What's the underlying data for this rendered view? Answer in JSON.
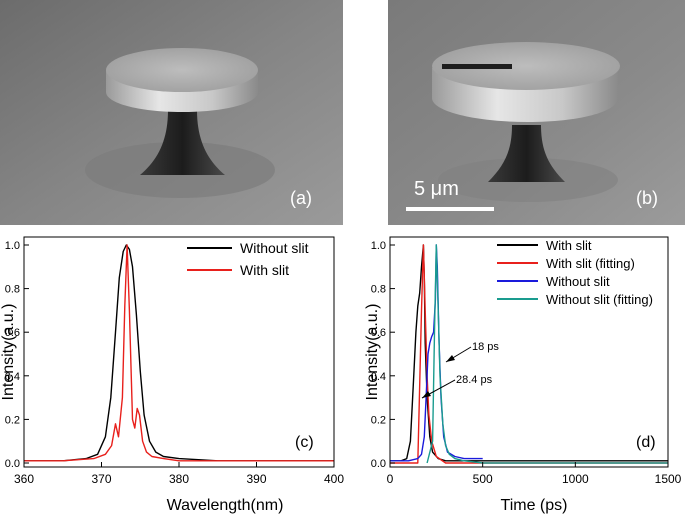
{
  "panels": {
    "a": {
      "label": "(a)"
    },
    "b": {
      "label": "(b)",
      "scale_bar": "5 μm"
    }
  },
  "chart_data": [
    {
      "id": "c",
      "type": "line",
      "panel_label": "(c)",
      "xlabel": "Wavelength(nm)",
      "ylabel": "Intensity(a.u.)",
      "xlim": [
        360,
        400
      ],
      "ylim": [
        0,
        1.0
      ],
      "xticks": [
        360,
        370,
        380,
        390,
        400
      ],
      "yticks": [
        0.0,
        0.2,
        0.4,
        0.6,
        0.8,
        1.0
      ],
      "legend_position": "top-right",
      "series": [
        {
          "name": "Without slit",
          "color": "#000000",
          "x": [
            360,
            365,
            368,
            369.5,
            370.5,
            371.2,
            371.8,
            372.3,
            372.8,
            373.2,
            373.6,
            374.0,
            374.5,
            375.0,
            375.5,
            376.2,
            377.0,
            378.0,
            380,
            385,
            390,
            395,
            400
          ],
          "y": [
            0.01,
            0.01,
            0.02,
            0.04,
            0.12,
            0.3,
            0.6,
            0.85,
            0.97,
            1.0,
            0.98,
            0.9,
            0.68,
            0.42,
            0.22,
            0.1,
            0.05,
            0.03,
            0.02,
            0.01,
            0.01,
            0.01,
            0.01
          ]
        },
        {
          "name": "With slit",
          "color": "#e8201c",
          "x": [
            360,
            365,
            369,
            370.5,
            371.3,
            371.8,
            372.2,
            372.7,
            373.0,
            373.3,
            373.6,
            374.0,
            374.3,
            374.6,
            374.9,
            375.3,
            375.8,
            376.5,
            378,
            380,
            385,
            390,
            395,
            400
          ],
          "y": [
            0.01,
            0.01,
            0.02,
            0.04,
            0.08,
            0.18,
            0.12,
            0.3,
            0.72,
            1.0,
            0.7,
            0.2,
            0.16,
            0.25,
            0.22,
            0.1,
            0.05,
            0.03,
            0.02,
            0.01,
            0.01,
            0.01,
            0.01,
            0.01
          ]
        }
      ]
    },
    {
      "id": "d",
      "type": "line",
      "panel_label": "(d)",
      "xlabel": "Time (ps)",
      "ylabel": "Intensity(a.u.)",
      "xlim": [
        0,
        1500
      ],
      "ylim": [
        0,
        1.0
      ],
      "xticks": [
        0,
        500,
        1000,
        1500
      ],
      "yticks": [
        0.0,
        0.2,
        0.4,
        0.6,
        0.8,
        1.0
      ],
      "legend_position": "top-right",
      "annotations": [
        {
          "text": "18 ps",
          "x": 310,
          "y": 0.5
        },
        {
          "text": "28.4 ps",
          "x": 230,
          "y": 0.33
        }
      ],
      "series": [
        {
          "name": "With slit",
          "color": "#000000",
          "x": [
            0,
            60,
            90,
            110,
            125,
            140,
            150,
            160,
            170,
            180,
            185,
            190,
            200,
            215,
            230,
            260,
            300,
            400,
            600,
            800,
            1000,
            1200,
            1500
          ],
          "y": [
            0.01,
            0.01,
            0.02,
            0.1,
            0.35,
            0.6,
            0.72,
            0.78,
            0.9,
            1.0,
            0.85,
            0.55,
            0.3,
            0.12,
            0.05,
            0.02,
            0.01,
            0.01,
            0.01,
            0.01,
            0.01,
            0.01,
            0.01
          ]
        },
        {
          "name": "With slit (fitting)",
          "color": "#e8201c",
          "x": [
            0,
            100,
            150,
            170,
            180,
            190,
            200,
            210,
            225,
            250,
            300,
            400,
            600,
            800,
            1000,
            1200,
            1500
          ],
          "y": [
            0.0,
            0.0,
            0.0,
            0.7,
            1.0,
            0.7,
            0.4,
            0.22,
            0.1,
            0.03,
            0.0,
            0.0,
            0.0,
            0.0,
            0.0,
            0.0,
            0.0
          ]
        },
        {
          "name": "Without slit",
          "color": "#1a1adb",
          "x": [
            0,
            100,
            150,
            170,
            185,
            195,
            205,
            215,
            225,
            235,
            245,
            250,
            255,
            265,
            275,
            290,
            310,
            350,
            400,
            450,
            500
          ],
          "y": [
            0.01,
            0.01,
            0.02,
            0.04,
            0.12,
            0.3,
            0.5,
            0.55,
            0.58,
            0.6,
            0.75,
            1.0,
            0.9,
            0.55,
            0.3,
            0.12,
            0.05,
            0.03,
            0.02,
            0.02,
            0.02
          ]
        },
        {
          "name": "Without slit (fitting)",
          "color": "#1a9c8f",
          "x": [
            200,
            230,
            240,
            250,
            260,
            270,
            285,
            300,
            320,
            350,
            400,
            500,
            600,
            800,
            1000,
            1200,
            1500
          ],
          "y": [
            0.0,
            0.1,
            0.6,
            1.0,
            0.7,
            0.4,
            0.18,
            0.08,
            0.04,
            0.02,
            0.01,
            0.0,
            0.0,
            0.0,
            0.0,
            0.0,
            0.0
          ]
        }
      ]
    }
  ]
}
